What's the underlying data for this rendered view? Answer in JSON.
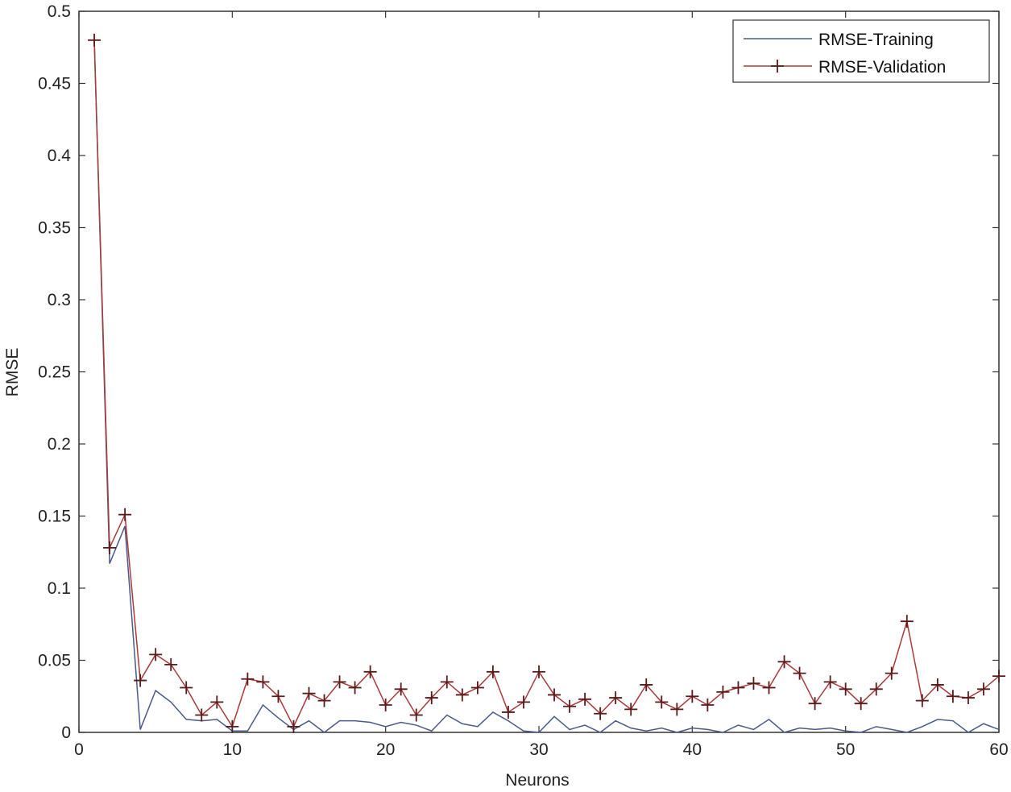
{
  "chart_data": {
    "type": "line",
    "xlabel": "Neurons",
    "ylabel": "RMSE",
    "xlim": [
      0,
      60
    ],
    "ylim": [
      0,
      0.5
    ],
    "xticks": [
      0,
      10,
      20,
      30,
      40,
      50,
      60
    ],
    "yticks": [
      0,
      0.05,
      0.1,
      0.15,
      0.2,
      0.25,
      0.3,
      0.35,
      0.4,
      0.45,
      0.5
    ],
    "ytick_labels": [
      "0",
      "0.05",
      "0.1",
      "0.15",
      "0.2",
      "0.25",
      "0.3",
      "0.35",
      "0.4",
      "0.45",
      "0.5"
    ],
    "legend_position": "top-right",
    "grid": false,
    "x": [
      1,
      2,
      3,
      4,
      5,
      6,
      7,
      8,
      9,
      10,
      11,
      12,
      13,
      14,
      15,
      16,
      17,
      18,
      19,
      20,
      21,
      22,
      23,
      24,
      25,
      26,
      27,
      28,
      29,
      30,
      31,
      32,
      33,
      34,
      35,
      36,
      37,
      38,
      39,
      40,
      41,
      42,
      43,
      44,
      45,
      46,
      47,
      48,
      49,
      50,
      51,
      52,
      53,
      54,
      55,
      56,
      57,
      58,
      59,
      60
    ],
    "series": [
      {
        "name": "RMSE-Training",
        "color": "#4a5a8a",
        "marker": "none",
        "values": [
          0.48,
          0.117,
          0.143,
          0.002,
          0.029,
          0.021,
          0.009,
          0.008,
          0.009,
          0.001,
          0.001,
          0.019,
          0.01,
          0.002,
          0.008,
          0.0,
          0.008,
          0.008,
          0.007,
          0.004,
          0.007,
          0.005,
          0.001,
          0.012,
          0.006,
          0.004,
          0.014,
          0.008,
          0.001,
          0.0,
          0.011,
          0.002,
          0.005,
          0.0,
          0.008,
          0.003,
          0.001,
          0.003,
          0.0,
          0.003,
          0.002,
          0.0,
          0.005,
          0.002,
          0.009,
          0.0,
          0.003,
          0.002,
          0.003,
          0.001,
          0.0,
          0.004,
          0.002,
          0.0,
          0.004,
          0.009,
          0.008,
          0.0,
          0.006,
          0.002
        ]
      },
      {
        "name": "RMSE-Validation",
        "color": "#a83a3a",
        "marker": "+",
        "values": [
          0.48,
          0.128,
          0.151,
          0.036,
          0.054,
          0.047,
          0.031,
          0.012,
          0.021,
          0.004,
          0.037,
          0.035,
          0.025,
          0.004,
          0.027,
          0.022,
          0.035,
          0.031,
          0.042,
          0.019,
          0.03,
          0.012,
          0.024,
          0.035,
          0.026,
          0.031,
          0.042,
          0.014,
          0.021,
          0.042,
          0.026,
          0.018,
          0.023,
          0.013,
          0.024,
          0.016,
          0.033,
          0.021,
          0.016,
          0.025,
          0.019,
          0.028,
          0.031,
          0.034,
          0.031,
          0.049,
          0.041,
          0.02,
          0.035,
          0.03,
          0.02,
          0.03,
          0.041,
          0.077,
          0.022,
          0.033,
          0.025,
          0.024,
          0.03,
          0.039
        ]
      }
    ]
  }
}
